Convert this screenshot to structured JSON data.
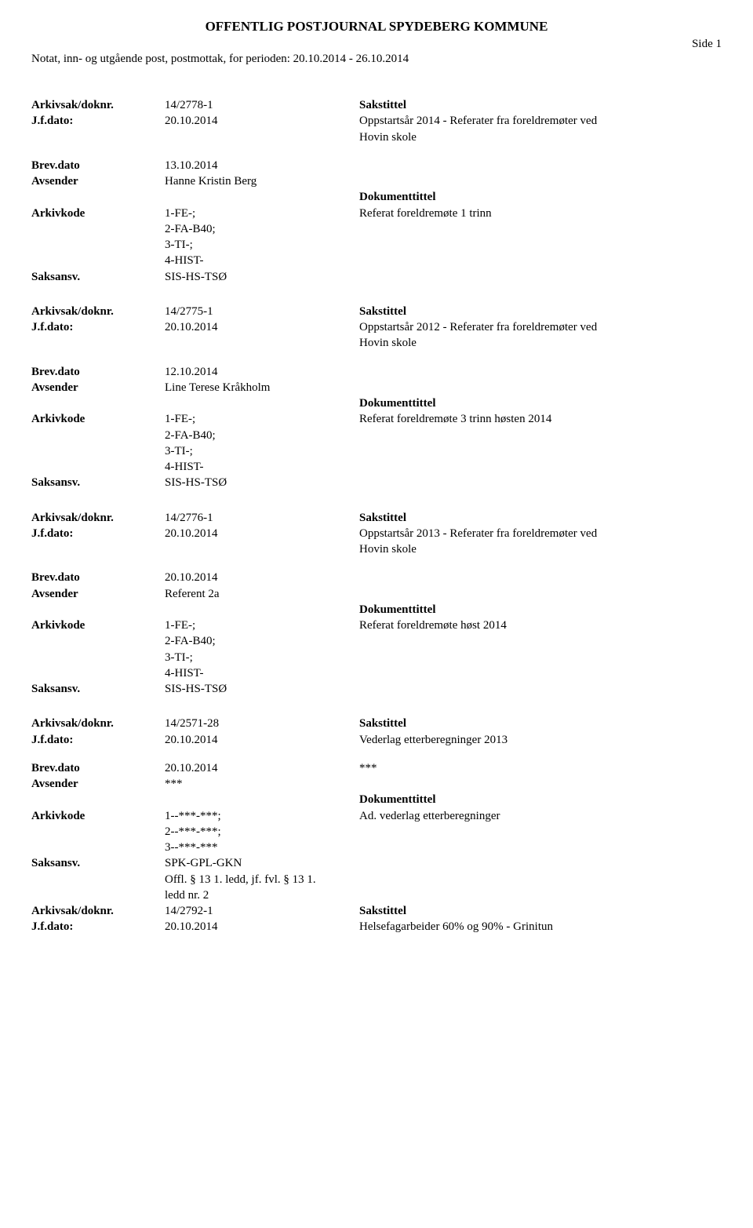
{
  "header": {
    "title": "OFFENTLIG POSTJOURNAL SPYDEBERG KOMMUNE",
    "side_label": "Side 1",
    "subheader": "Notat, inn- og utgående post, postmottak, for perioden: 20.10.2014 - 26.10.2014"
  },
  "labels": {
    "arkivsak": "Arkivsak/doknr.",
    "jfdato": "J.f.dato:",
    "brevdato": "Brev.dato",
    "avsender": "Avsender",
    "arkivkode": "Arkivkode",
    "saksansv": "Saksansv.",
    "sakstittel": "Sakstittel",
    "dokumenttittel": "Dokumenttittel"
  },
  "entries": [
    {
      "arkivsak": "14/2778-1",
      "jfdato": "20.10.2014",
      "sakstittel_lines": [
        "Oppstartsår 2014 - Referater fra foreldremøter ved",
        "Hovin skole"
      ],
      "brevdato": "13.10.2014",
      "avsender": "Hanne Kristin Berg",
      "dokumenttittel": "Referat foreldremøte 1 trinn",
      "arkivkode_lines": [
        "1-FE-;",
        "2-FA-B40;",
        "3-TI-;",
        "4-HIST-"
      ],
      "saksansv": "SIS-HS-TSØ",
      "extra_lines": []
    },
    {
      "arkivsak": "14/2775-1",
      "jfdato": "20.10.2014",
      "sakstittel_lines": [
        "Oppstartsår 2012 - Referater fra foreldremøter ved",
        "Hovin skole"
      ],
      "brevdato": "12.10.2014",
      "avsender": "Line Terese Kråkholm",
      "dokumenttittel": "Referat foreldremøte 3 trinn høsten 2014",
      "arkivkode_lines": [
        "1-FE-;",
        "2-FA-B40;",
        "3-TI-;",
        "4-HIST-"
      ],
      "saksansv": "SIS-HS-TSØ",
      "extra_lines": []
    },
    {
      "arkivsak": "14/2776-1",
      "jfdato": "20.10.2014",
      "sakstittel_lines": [
        "Oppstartsår 2013 - Referater fra foreldremøter ved",
        "Hovin skole"
      ],
      "brevdato": "20.10.2014",
      "avsender": "Referent 2a",
      "dokumenttittel": "Referat foreldremøte høst 2014",
      "arkivkode_lines": [
        "1-FE-;",
        "2-FA-B40;",
        "3-TI-;",
        "4-HIST-"
      ],
      "saksansv": "SIS-HS-TSØ",
      "extra_lines": []
    },
    {
      "arkivsak": "14/2571-28",
      "jfdato": "20.10.2014",
      "sakstittel_lines": [
        "Vederlag etterberegninger 2013"
      ],
      "brevdato": "20.10.2014",
      "brevdato_right": "***",
      "avsender": "***",
      "dokumenttittel": "Ad. vederlag etterberegninger",
      "arkivkode_lines": [
        "1--***-***;",
        "2--***-***;",
        "3--***-***"
      ],
      "saksansv": "SPK-GPL-GKN",
      "extra_lines": [
        "Offl. § 13 1. ledd, jf. fvl. § 13 1.",
        "ledd nr. 2"
      ],
      "trailing": {
        "arkivsak": "14/2792-1",
        "sakstittel": "Sakstittel",
        "jfdato": "20.10.2014",
        "jfdato_text": "Helsefagarbeider 60% og 90% - Grinitun"
      }
    }
  ]
}
